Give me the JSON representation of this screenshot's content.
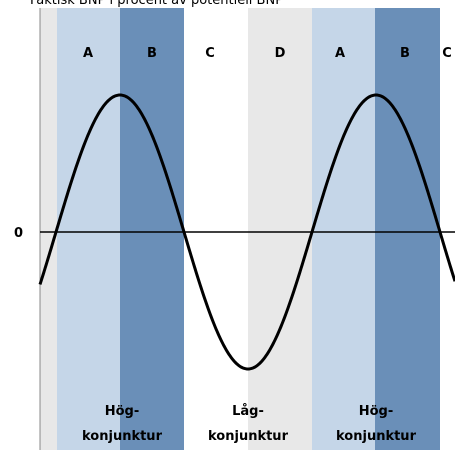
{
  "title": "Faktisk BNP i procent av potentiell BNP",
  "zero_label": "0",
  "bands": [
    {
      "label": "A"
    },
    {
      "label": "B"
    },
    {
      "label": "C"
    },
    {
      "label": "D"
    },
    {
      "label": "A"
    },
    {
      "label": "B"
    },
    {
      "label": "C"
    }
  ],
  "phases": [
    {
      "line1": "Hög-",
      "line2": "konjunktur"
    },
    {
      "line1": "Låg-",
      "line2": "konjunktur"
    },
    {
      "line1": "Hög-",
      "line2": "konjunktur"
    }
  ]
}
